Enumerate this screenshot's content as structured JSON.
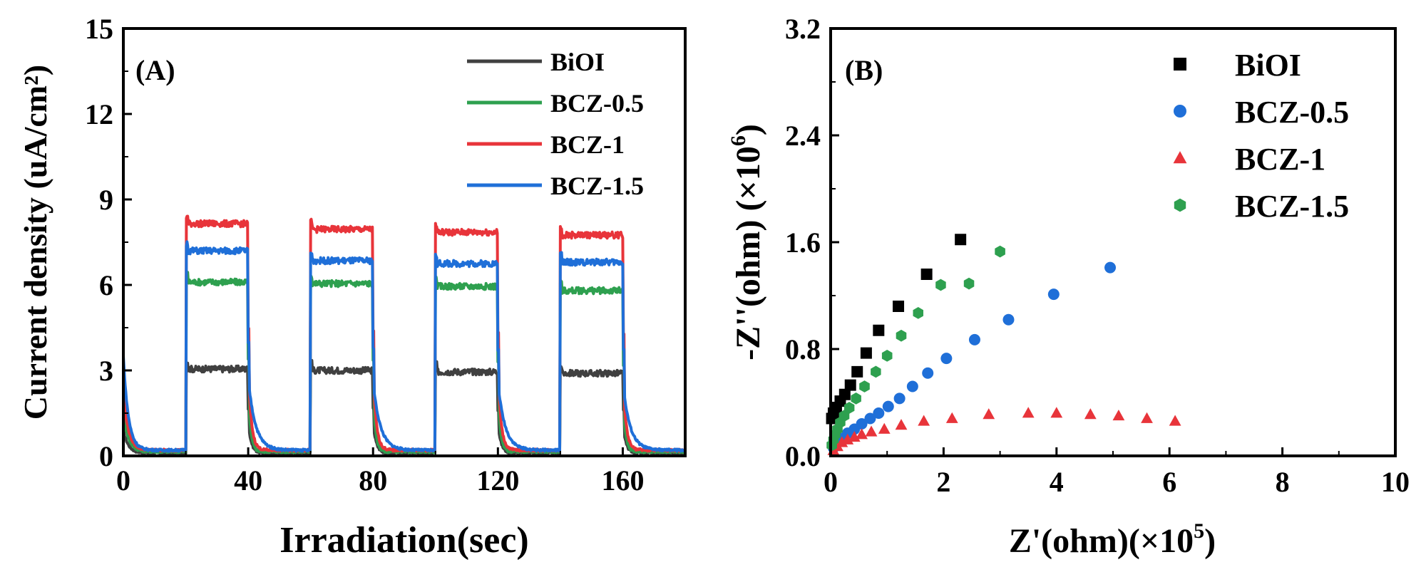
{
  "colors": {
    "axis": "#000000",
    "BiOI_A": "#404040",
    "green": "#2ea04f",
    "red": "#e8343a",
    "blue": "#1f6fd8",
    "black": "#000000"
  },
  "chart_data": [
    {
      "type": "line",
      "panel_label": "(A)",
      "xlabel": "Irradiation(sec)",
      "ylabel": "Current density (uA/cm²)",
      "xlim": [
        0,
        180
      ],
      "ylim": [
        0,
        15
      ],
      "xticks": [
        "0",
        "40",
        "80",
        "120",
        "160"
      ],
      "yticks": [
        "0",
        "3",
        "6",
        "9",
        "12",
        "15"
      ],
      "legend": [
        "BiOI",
        "BCZ-0.5",
        "BCZ-1",
        "BCZ-1.5"
      ],
      "light_on_intervals": [
        [
          20,
          40
        ],
        [
          60,
          80
        ],
        [
          100,
          120
        ],
        [
          140,
          160
        ]
      ],
      "series": [
        {
          "name": "BiOI",
          "color_key": "BiOI_A",
          "dark": 0.1,
          "on_levels": [
            3.05,
            3.0,
            2.95,
            2.9
          ],
          "initial": 0.9
        },
        {
          "name": "BCZ-0.5",
          "color_key": "green",
          "dark": 0.15,
          "on_levels": [
            6.1,
            6.05,
            5.95,
            5.8
          ],
          "initial": 1.5
        },
        {
          "name": "BCZ-1",
          "color_key": "red",
          "dark": 0.2,
          "on_levels": [
            8.15,
            7.95,
            7.85,
            7.75
          ],
          "initial": 2.2
        },
        {
          "name": "BCZ-1.5",
          "color_key": "blue",
          "dark": 0.2,
          "on_levels": [
            7.2,
            6.85,
            6.75,
            6.8
          ],
          "initial": 3.5
        }
      ]
    },
    {
      "type": "scatter",
      "panel_label": "(B)",
      "xlabel": "Z'(ohm)(×10",
      "xlabel_sup": "5",
      "xlabel_end": ")",
      "ylabel": "-Z''(ohm) (×10",
      "ylabel_sup": "6",
      "ylabel_end": ")",
      "xlim": [
        0,
        10
      ],
      "ylim": [
        0,
        3.2
      ],
      "xticks": [
        "0",
        "2",
        "4",
        "6",
        "8",
        "10"
      ],
      "yticks": [
        "0.0",
        "0.8",
        "1.6",
        "2.4",
        "3.2"
      ],
      "legend": [
        "BiOI",
        "BCZ-0.5",
        "BCZ-1",
        "BCZ-1.5"
      ],
      "series": [
        {
          "name": "BiOI",
          "marker": "square",
          "color_key": "black",
          "x": [
            0.02,
            0.05,
            0.1,
            0.17,
            0.25,
            0.35,
            0.47,
            0.63,
            0.85,
            1.2,
            1.7,
            2.3
          ],
          "y": [
            0.28,
            0.32,
            0.36,
            0.41,
            0.46,
            0.53,
            0.63,
            0.77,
            0.94,
            1.12,
            1.36,
            1.62
          ]
        },
        {
          "name": "BCZ-0.5",
          "marker": "circle",
          "color_key": "blue",
          "x": [
            0.05,
            0.12,
            0.2,
            0.3,
            0.42,
            0.55,
            0.7,
            0.85,
            1.02,
            1.22,
            1.45,
            1.72,
            2.05,
            2.55,
            3.15,
            3.95,
            4.95
          ],
          "y": [
            0.06,
            0.1,
            0.13,
            0.17,
            0.2,
            0.24,
            0.28,
            0.32,
            0.37,
            0.43,
            0.52,
            0.62,
            0.73,
            0.87,
            1.02,
            1.21,
            1.41
          ]
        },
        {
          "name": "BCZ-1",
          "marker": "triangle",
          "color_key": "red",
          "x": [
            0.05,
            0.12,
            0.2,
            0.3,
            0.42,
            0.55,
            0.72,
            0.95,
            1.25,
            1.65,
            2.15,
            2.8,
            3.5,
            4.0,
            4.6,
            5.1,
            5.6,
            6.1
          ],
          "y": [
            0.04,
            0.07,
            0.1,
            0.12,
            0.14,
            0.16,
            0.18,
            0.2,
            0.23,
            0.26,
            0.28,
            0.31,
            0.32,
            0.32,
            0.31,
            0.3,
            0.28,
            0.26
          ]
        },
        {
          "name": "BCZ-1.5",
          "marker": "hexagon",
          "color_key": "green",
          "x": [
            0.02,
            0.05,
            0.08,
            0.12,
            0.17,
            0.24,
            0.33,
            0.45,
            0.6,
            0.8,
            1.0,
            1.25,
            1.55,
            1.95,
            2.45,
            3.0
          ],
          "y": [
            0.08,
            0.12,
            0.16,
            0.2,
            0.25,
            0.3,
            0.36,
            0.43,
            0.52,
            0.63,
            0.75,
            0.9,
            1.07,
            1.28,
            1.29,
            1.53
          ]
        }
      ]
    }
  ]
}
